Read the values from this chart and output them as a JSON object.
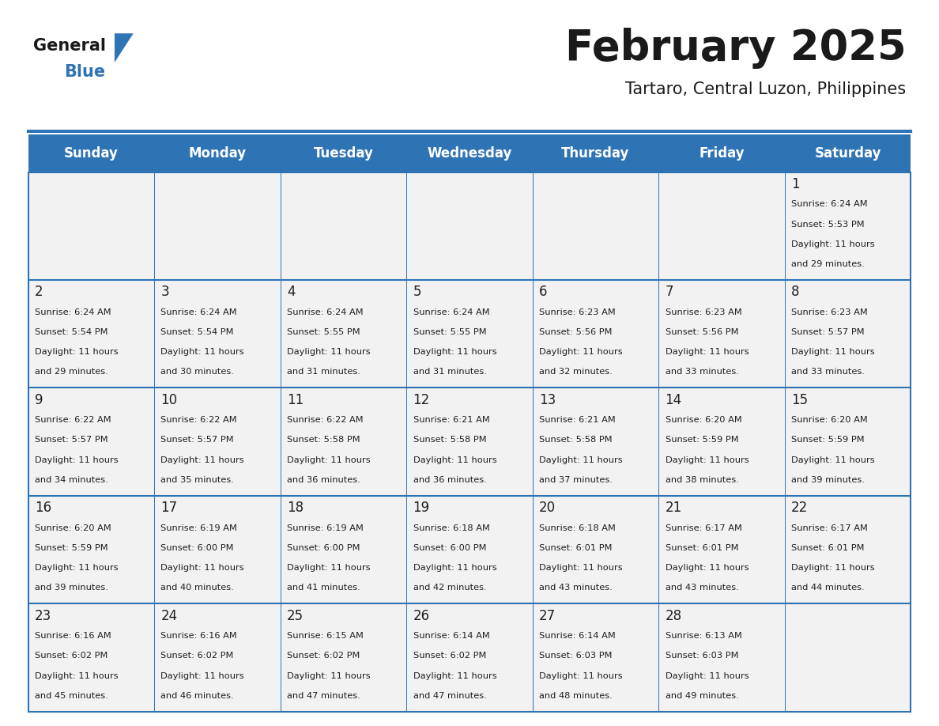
{
  "title": "February 2025",
  "subtitle": "Tartaro, Central Luzon, Philippines",
  "header_bg": "#2E74B5",
  "header_text_color": "#FFFFFF",
  "cell_bg": "#F2F2F2",
  "text_color": "#1F1F1F",
  "line_color": "#2E74B5",
  "days_of_week": [
    "Sunday",
    "Monday",
    "Tuesday",
    "Wednesday",
    "Thursday",
    "Friday",
    "Saturday"
  ],
  "weeks": [
    [
      {
        "day": null,
        "sunrise": null,
        "sunset": null,
        "daylight": null
      },
      {
        "day": null,
        "sunrise": null,
        "sunset": null,
        "daylight": null
      },
      {
        "day": null,
        "sunrise": null,
        "sunset": null,
        "daylight": null
      },
      {
        "day": null,
        "sunrise": null,
        "sunset": null,
        "daylight": null
      },
      {
        "day": null,
        "sunrise": null,
        "sunset": null,
        "daylight": null
      },
      {
        "day": null,
        "sunrise": null,
        "sunset": null,
        "daylight": null
      },
      {
        "day": 1,
        "sunrise": "6:24 AM",
        "sunset": "5:53 PM",
        "daylight": "11 hours and 29 minutes."
      }
    ],
    [
      {
        "day": 2,
        "sunrise": "6:24 AM",
        "sunset": "5:54 PM",
        "daylight": "11 hours and 29 minutes."
      },
      {
        "day": 3,
        "sunrise": "6:24 AM",
        "sunset": "5:54 PM",
        "daylight": "11 hours and 30 minutes."
      },
      {
        "day": 4,
        "sunrise": "6:24 AM",
        "sunset": "5:55 PM",
        "daylight": "11 hours and 31 minutes."
      },
      {
        "day": 5,
        "sunrise": "6:24 AM",
        "sunset": "5:55 PM",
        "daylight": "11 hours and 31 minutes."
      },
      {
        "day": 6,
        "sunrise": "6:23 AM",
        "sunset": "5:56 PM",
        "daylight": "11 hours and 32 minutes."
      },
      {
        "day": 7,
        "sunrise": "6:23 AM",
        "sunset": "5:56 PM",
        "daylight": "11 hours and 33 minutes."
      },
      {
        "day": 8,
        "sunrise": "6:23 AM",
        "sunset": "5:57 PM",
        "daylight": "11 hours and 33 minutes."
      }
    ],
    [
      {
        "day": 9,
        "sunrise": "6:22 AM",
        "sunset": "5:57 PM",
        "daylight": "11 hours and 34 minutes."
      },
      {
        "day": 10,
        "sunrise": "6:22 AM",
        "sunset": "5:57 PM",
        "daylight": "11 hours and 35 minutes."
      },
      {
        "day": 11,
        "sunrise": "6:22 AM",
        "sunset": "5:58 PM",
        "daylight": "11 hours and 36 minutes."
      },
      {
        "day": 12,
        "sunrise": "6:21 AM",
        "sunset": "5:58 PM",
        "daylight": "11 hours and 36 minutes."
      },
      {
        "day": 13,
        "sunrise": "6:21 AM",
        "sunset": "5:58 PM",
        "daylight": "11 hours and 37 minutes."
      },
      {
        "day": 14,
        "sunrise": "6:20 AM",
        "sunset": "5:59 PM",
        "daylight": "11 hours and 38 minutes."
      },
      {
        "day": 15,
        "sunrise": "6:20 AM",
        "sunset": "5:59 PM",
        "daylight": "11 hours and 39 minutes."
      }
    ],
    [
      {
        "day": 16,
        "sunrise": "6:20 AM",
        "sunset": "5:59 PM",
        "daylight": "11 hours and 39 minutes."
      },
      {
        "day": 17,
        "sunrise": "6:19 AM",
        "sunset": "6:00 PM",
        "daylight": "11 hours and 40 minutes."
      },
      {
        "day": 18,
        "sunrise": "6:19 AM",
        "sunset": "6:00 PM",
        "daylight": "11 hours and 41 minutes."
      },
      {
        "day": 19,
        "sunrise": "6:18 AM",
        "sunset": "6:00 PM",
        "daylight": "11 hours and 42 minutes."
      },
      {
        "day": 20,
        "sunrise": "6:18 AM",
        "sunset": "6:01 PM",
        "daylight": "11 hours and 43 minutes."
      },
      {
        "day": 21,
        "sunrise": "6:17 AM",
        "sunset": "6:01 PM",
        "daylight": "11 hours and 43 minutes."
      },
      {
        "day": 22,
        "sunrise": "6:17 AM",
        "sunset": "6:01 PM",
        "daylight": "11 hours and 44 minutes."
      }
    ],
    [
      {
        "day": 23,
        "sunrise": "6:16 AM",
        "sunset": "6:02 PM",
        "daylight": "11 hours and 45 minutes."
      },
      {
        "day": 24,
        "sunrise": "6:16 AM",
        "sunset": "6:02 PM",
        "daylight": "11 hours and 46 minutes."
      },
      {
        "day": 25,
        "sunrise": "6:15 AM",
        "sunset": "6:02 PM",
        "daylight": "11 hours and 47 minutes."
      },
      {
        "day": 26,
        "sunrise": "6:14 AM",
        "sunset": "6:02 PM",
        "daylight": "11 hours and 47 minutes."
      },
      {
        "day": 27,
        "sunrise": "6:14 AM",
        "sunset": "6:03 PM",
        "daylight": "11 hours and 48 minutes."
      },
      {
        "day": 28,
        "sunrise": "6:13 AM",
        "sunset": "6:03 PM",
        "daylight": "11 hours and 49 minutes."
      },
      {
        "day": null,
        "sunrise": null,
        "sunset": null,
        "daylight": null
      }
    ]
  ]
}
